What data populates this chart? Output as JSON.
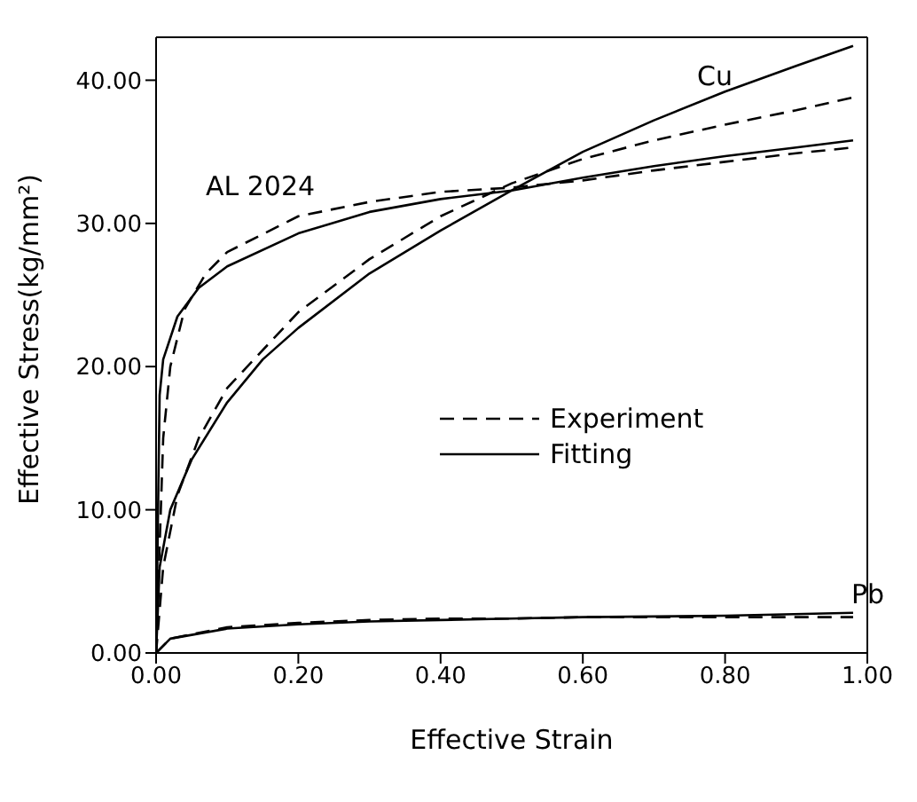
{
  "chart_data": {
    "type": "line",
    "xlabel": "Effective Strain",
    "ylabel": "Effective Stress(kg/mm²)",
    "xlim": [
      0,
      1.0
    ],
    "ylim": [
      0,
      43
    ],
    "xticks": [
      {
        "value": 0,
        "label": "0.00"
      },
      {
        "value": 0.2,
        "label": "0.20"
      },
      {
        "value": 0.4,
        "label": "0.40"
      },
      {
        "value": 0.6,
        "label": "0.60"
      },
      {
        "value": 0.8,
        "label": "0.80"
      },
      {
        "value": 1.0,
        "label": "1.00"
      }
    ],
    "yticks": [
      {
        "value": 0,
        "label": "0.00"
      },
      {
        "value": 10,
        "label": "10.00"
      },
      {
        "value": 20,
        "label": "20.00"
      },
      {
        "value": 30,
        "label": "30.00"
      },
      {
        "value": 40,
        "label": "40.00"
      }
    ],
    "legend": "center",
    "marker": "none",
    "annotations": [
      "Cu",
      "AL 2024",
      "Pb"
    ],
    "series": [
      {
        "name": "Experiment",
        "color": "#000000",
        "line_style": "dashed",
        "x": [
          0,
          0.01,
          0.02,
          0.04,
          0.07,
          0.1,
          0.2,
          0.3,
          0.4,
          0.5,
          0.6,
          0.7,
          0.8,
          0.9,
          0.98
        ],
        "values": [
          0,
          15,
          20,
          24,
          26.5,
          28,
          30.5,
          31.5,
          32.2,
          32.5,
          33,
          33.7,
          34.3,
          34.9,
          35.3
        ]
      },
      {
        "name": "Fitting",
        "color": "#000000",
        "line_style": "solid",
        "x": [
          0,
          0.005,
          0.01,
          0.03,
          0.06,
          0.1,
          0.2,
          0.3,
          0.4,
          0.5,
          0.6,
          0.7,
          0.8,
          0.9,
          0.98
        ],
        "values": [
          0,
          18,
          20.5,
          23.5,
          25.5,
          27,
          29.3,
          30.8,
          31.7,
          32.3,
          33.2,
          34,
          34.7,
          35.3,
          35.8
        ]
      },
      {
        "color": "#000000",
        "line_style": "dashed",
        "x": [
          0,
          0.01,
          0.03,
          0.06,
          0.1,
          0.2,
          0.3,
          0.4,
          0.5,
          0.6,
          0.7,
          0.8,
          0.9,
          0.98
        ],
        "values": [
          0,
          6,
          11,
          15,
          18.5,
          23.8,
          27.5,
          30.5,
          32.8,
          34.5,
          35.8,
          36.9,
          37.9,
          38.8
        ]
      },
      {
        "color": "#000000",
        "line_style": "solid",
        "x": [
          0,
          0.005,
          0.02,
          0.05,
          0.1,
          0.15,
          0.2,
          0.3,
          0.4,
          0.5,
          0.6,
          0.7,
          0.8,
          0.9,
          0.98
        ],
        "values": [
          0,
          6,
          10,
          13.5,
          17.5,
          20.5,
          22.7,
          26.5,
          29.5,
          32.3,
          35,
          37.2,
          39.2,
          41,
          42.4
        ]
      },
      {
        "color": "#000000",
        "line_style": "dashed",
        "x": [
          0,
          0.02,
          0.1,
          0.2,
          0.3,
          0.4,
          0.5,
          0.6,
          0.8,
          0.98
        ],
        "values": [
          0,
          1,
          1.8,
          2.1,
          2.3,
          2.4,
          2.4,
          2.5,
          2.5,
          2.5
        ]
      },
      {
        "color": "#000000",
        "line_style": "solid",
        "x": [
          0,
          0.02,
          0.1,
          0.2,
          0.3,
          0.4,
          0.5,
          0.6,
          0.8,
          0.98
        ],
        "values": [
          0,
          1,
          1.7,
          2,
          2.2,
          2.3,
          2.4,
          2.5,
          2.6,
          2.8
        ]
      }
    ]
  }
}
